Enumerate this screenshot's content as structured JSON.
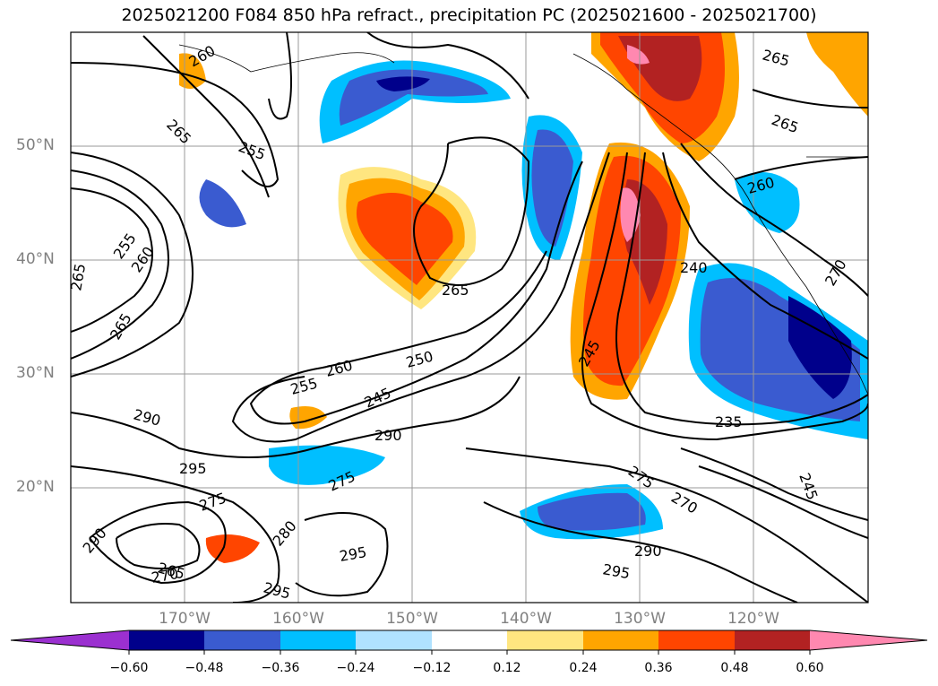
{
  "title": "2025021200 F084 850 hPa refract., precipitation PC (2025021600 - 2025021700)",
  "latitude_labels": [
    "50°N",
    "40°N",
    "30°N",
    "20°N"
  ],
  "longitude_labels": [
    "170°W",
    "160°W",
    "150°W",
    "140°W",
    "130°W",
    "120°W"
  ],
  "colorbar": {
    "ticks": [
      "−0.60",
      "−0.48",
      "−0.36",
      "−0.24",
      "−0.12",
      "0.12",
      "0.24",
      "0.36",
      "0.48",
      "0.60"
    ],
    "colors": [
      "#9b30d0",
      "#00008b",
      "#3a5bd0",
      "#00bfff",
      "#b0e2ff",
      "#ffffff",
      "#ffe680",
      "#ffa500",
      "#ff4500",
      "#b22222",
      "#ff88b0"
    ]
  },
  "contour_labels": [
    {
      "text": "260"
    },
    {
      "text": "265"
    },
    {
      "text": "255"
    },
    {
      "text": "265"
    },
    {
      "text": "265"
    },
    {
      "text": "255"
    },
    {
      "text": "260"
    },
    {
      "text": "265"
    },
    {
      "text": "260"
    },
    {
      "text": "265"
    },
    {
      "text": "265"
    },
    {
      "text": "240"
    },
    {
      "text": "260"
    },
    {
      "text": "250"
    },
    {
      "text": "255"
    },
    {
      "text": "245"
    },
    {
      "text": "290"
    },
    {
      "text": "290"
    },
    {
      "text": "295"
    },
    {
      "text": "275"
    },
    {
      "text": "275"
    },
    {
      "text": "245"
    },
    {
      "text": "235"
    },
    {
      "text": "275"
    },
    {
      "text": "270"
    },
    {
      "text": "245"
    },
    {
      "text": "290"
    },
    {
      "text": "295"
    },
    {
      "text": "265"
    },
    {
      "text": "270"
    },
    {
      "text": "295"
    },
    {
      "text": "295"
    },
    {
      "text": "280"
    },
    {
      "text": "290"
    },
    {
      "text": "270"
    }
  ]
}
